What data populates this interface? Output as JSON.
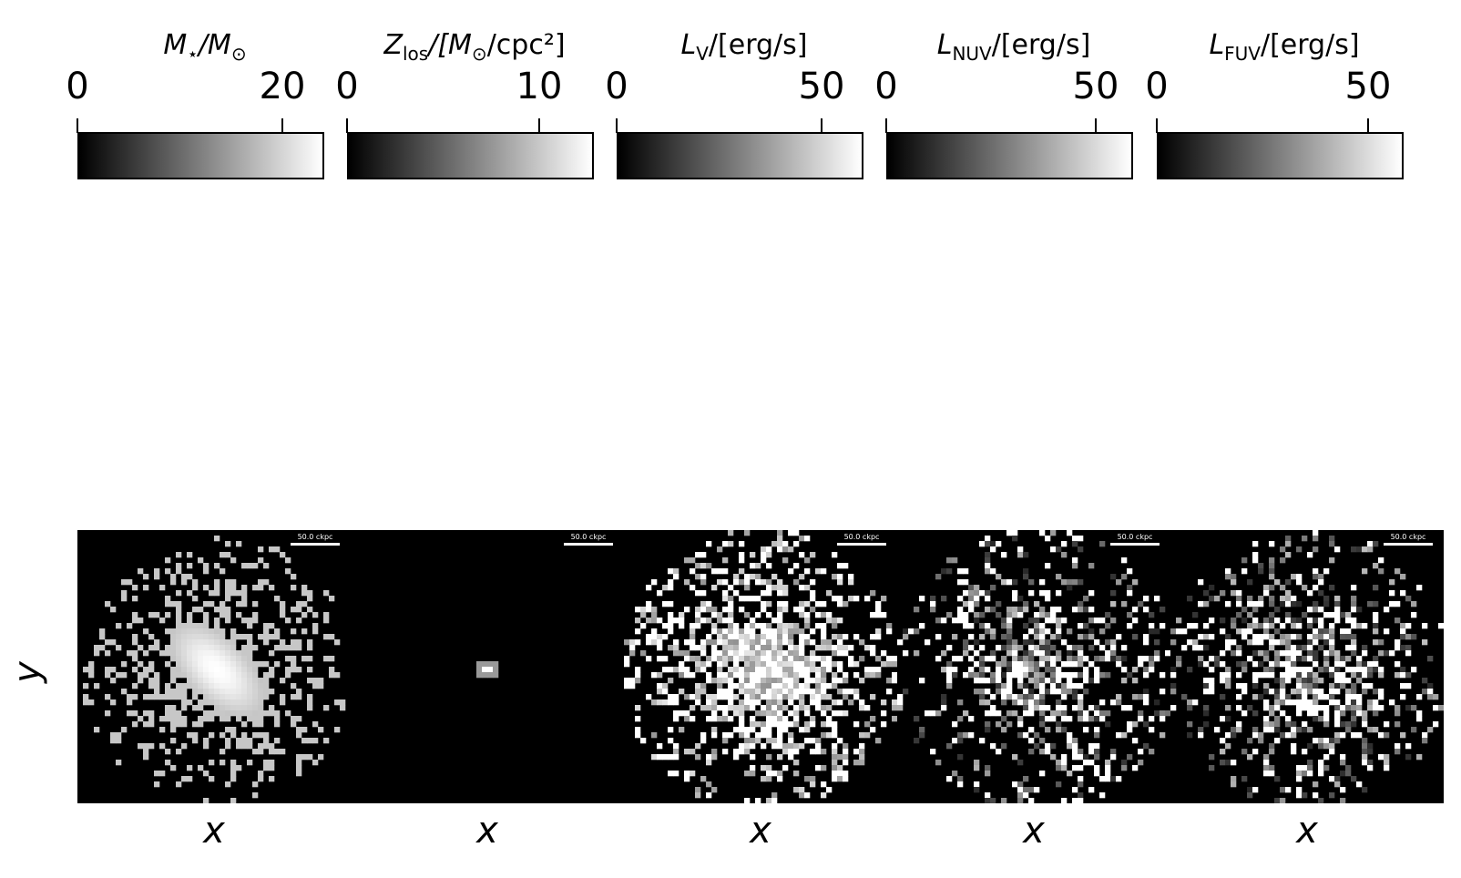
{
  "colorbars": [
    {
      "label_sym": "M",
      "label_sub": "⋆",
      "label_rest": "/M",
      "label_sub2": "⊙",
      "label_tail": "",
      "ticks": [
        {
          "value": 0,
          "label": "0"
        },
        {
          "value": 20,
          "label": "20"
        }
      ],
      "vmin": 0,
      "vmax": 24
    },
    {
      "label_sym": "Z",
      "label_sub": "los",
      "label_rest": "/[M",
      "label_sub2": "⊙",
      "label_tail": "/cpc²]",
      "ticks": [
        {
          "value": 0,
          "label": "0"
        },
        {
          "value": 10,
          "label": "10"
        }
      ],
      "vmin": 0,
      "vmax": 12.8
    },
    {
      "label_sym": "L",
      "label_sub": "V",
      "label_rest": "/[erg/s]",
      "label_sub2": "",
      "label_tail": "",
      "ticks": [
        {
          "value": 0,
          "label": "0"
        },
        {
          "value": 50,
          "label": "50"
        }
      ],
      "vmin": 0,
      "vmax": 60
    },
    {
      "label_sym": "L",
      "label_sub": "NUV",
      "label_rest": "/[erg/s]",
      "label_sub2": "",
      "label_tail": "",
      "ticks": [
        {
          "value": 0,
          "label": "0"
        },
        {
          "value": 50,
          "label": "50"
        }
      ],
      "vmin": 0,
      "vmax": 59
    },
    {
      "label_sym": "L",
      "label_sub": "FUV",
      "label_rest": "/[erg/s]",
      "label_sub2": "",
      "label_tail": "",
      "ticks": [
        {
          "value": 0,
          "label": "0"
        },
        {
          "value": 50,
          "label": "50"
        }
      ],
      "vmin": 0,
      "vmax": 60
    }
  ],
  "panels": [
    {
      "xlabel": "x",
      "scalebar": "50.0 ckpc",
      "map": "mass"
    },
    {
      "xlabel": "x",
      "scalebar": "50.0 ckpc",
      "map": "metal"
    },
    {
      "xlabel": "x",
      "scalebar": "50.0 ckpc",
      "map": "lum_v"
    },
    {
      "xlabel": "x",
      "scalebar": "50.0 ckpc",
      "map": "lum_nuv"
    },
    {
      "xlabel": "x",
      "scalebar": "50.0 ckpc",
      "map": "lum_fuv"
    }
  ],
  "ylabel": "y",
  "chart_data": {
    "type": "heatmap",
    "colormap": "gray",
    "n_panels": 5,
    "grid_size": 50,
    "xlabel": "x",
    "ylabel": "y",
    "scalebar_label": "50.0 ckpc",
    "colorbar_labels": [
      "M⋆/M⊙",
      "Zlos/[M⊙/cpc²]",
      "LV/[erg/s]",
      "LNUV/[erg/s]",
      "LFUV/[erg/s]"
    ],
    "colorbar_ranges": [
      [
        0,
        24
      ],
      [
        0,
        12.8
      ],
      [
        0,
        60
      ],
      [
        0,
        59
      ],
      [
        0,
        60
      ]
    ],
    "colorbar_ticks": [
      [
        0,
        20
      ],
      [
        0,
        10
      ],
      [
        0,
        50
      ],
      [
        0,
        50
      ],
      [
        0,
        50
      ]
    ]
  },
  "colors": {
    "background": "#000000",
    "foreground": "#ffffff"
  }
}
